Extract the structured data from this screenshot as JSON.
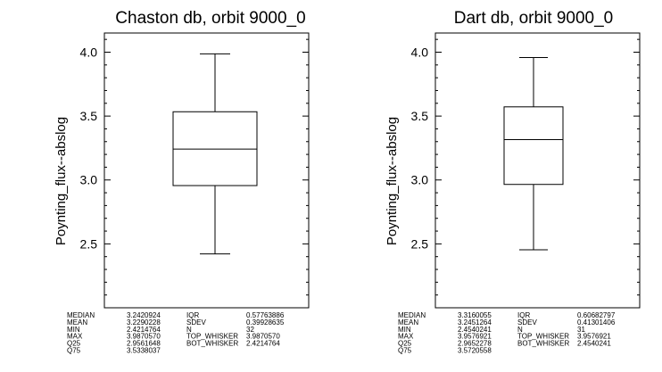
{
  "chart_data": [
    {
      "type": "box",
      "title": "Chaston db, orbit 9000_0",
      "ylabel": "Poynting_flux--abslog",
      "ylim": [
        2.0,
        4.15
      ],
      "yticks": [
        "2.5",
        "3.0",
        "3.5",
        "4.0"
      ],
      "ytick_values": [
        2.5,
        3.0,
        3.5,
        4.0
      ],
      "box": {
        "bot_whisker": 2.4214764,
        "q25": 2.9561648,
        "median": 3.2420924,
        "q75": 3.5338037,
        "top_whisker": 3.987057
      },
      "stats": [
        {
          "label": "MEDIAN",
          "value": "3.2420924",
          "label2": "IQR",
          "value2": "0.57763886"
        },
        {
          "label": "MEAN",
          "value": "3.2290228",
          "label2": "SDEV",
          "value2": "0.39928635"
        },
        {
          "label": "MIN",
          "value": "2.4214764",
          "label2": "N",
          "value2": "32"
        },
        {
          "label": "MAX",
          "value": "3.9870570",
          "label2": "TOP_WHISKER",
          "value2": "3.9870570"
        },
        {
          "label": "Q25",
          "value": "2.9561648",
          "label2": "BOT_WHISKER",
          "value2": "2.4214764"
        },
        {
          "label": "Q75",
          "value": "3.5338037",
          "label2": "",
          "value2": ""
        }
      ]
    },
    {
      "type": "box",
      "title": "Dart db, orbit 9000_0",
      "ylabel": "Poynting_flux--abslog",
      "ylim": [
        2.0,
        4.15
      ],
      "yticks": [
        "2.5",
        "3.0",
        "3.5",
        "4.0"
      ],
      "ytick_values": [
        2.5,
        3.0,
        3.5,
        4.0
      ],
      "box": {
        "bot_whisker": 2.4540241,
        "q25": 2.9652278,
        "median": 3.3160055,
        "q75": 3.5720558,
        "top_whisker": 3.9576921
      },
      "stats": [
        {
          "label": "MEDIAN",
          "value": "3.3160055",
          "label2": "IQR",
          "value2": "0.60682797"
        },
        {
          "label": "MEAN",
          "value": "3.2451264",
          "label2": "SDEV",
          "value2": "0.41301406"
        },
        {
          "label": "MIN",
          "value": "2.4540241",
          "label2": "N",
          "value2": "31"
        },
        {
          "label": "MAX",
          "value": "3.9576921",
          "label2": "TOP_WHISKER",
          "value2": "3.9576921"
        },
        {
          "label": "Q25",
          "value": "2.9652278",
          "label2": "BOT_WHISKER",
          "value2": "2.4540241"
        },
        {
          "label": "Q75",
          "value": "3.5720558",
          "label2": "",
          "value2": ""
        }
      ]
    }
  ]
}
